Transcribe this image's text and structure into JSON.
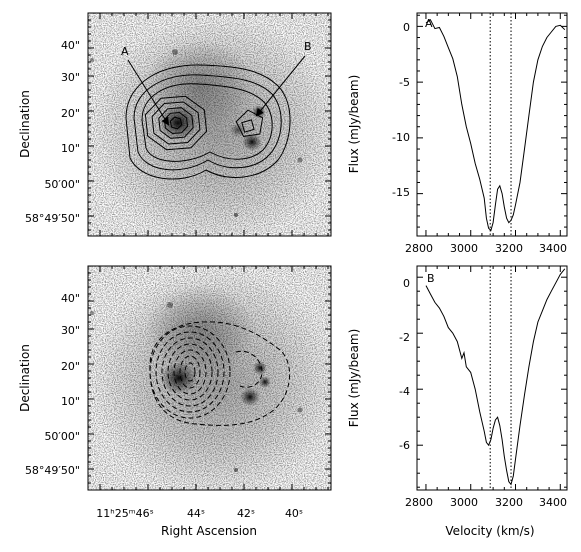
{
  "chart_data": [
    {
      "type": "image-contour",
      "panel": "top-left",
      "xlabel": "",
      "ylabel": "Declination",
      "y_ticks": [
        "40\"",
        "30\"",
        "20\"",
        "10\"",
        "50′00\"",
        "58°49′50\""
      ],
      "arrow_labels": [
        "A",
        "B"
      ],
      "contour_style": "solid",
      "contour_levels_count": 8
    },
    {
      "type": "line",
      "panel": "top-right",
      "label": "A",
      "xlabel": "",
      "ylabel": "Flux (mJy/beam)",
      "xlim": [
        2760,
        3430
      ],
      "ylim": [
        -18.8,
        1.2
      ],
      "x_ticks": [
        "2800",
        "3000",
        "3200",
        "3400"
      ],
      "y_ticks": [
        "0",
        "-5",
        "-10",
        "-15"
      ],
      "vlines": [
        3087,
        3180
      ],
      "x": [
        2800,
        2820,
        2840,
        2860,
        2880,
        2900,
        2920,
        2940,
        2960,
        2980,
        3000,
        3020,
        3040,
        3060,
        3070,
        3080,
        3090,
        3100,
        3110,
        3120,
        3130,
        3140,
        3150,
        3160,
        3170,
        3180,
        3190,
        3200,
        3220,
        3240,
        3260,
        3280,
        3300,
        3320,
        3340,
        3360,
        3380,
        3400,
        3420
      ],
      "y": [
        0.3,
        0.6,
        -0.2,
        -0.1,
        -0.9,
        -1.9,
        -2.9,
        -4.5,
        -7.0,
        -9.0,
        -10.5,
        -12.3,
        -13.7,
        -15.4,
        -17.2,
        -18.1,
        -18.3,
        -17.6,
        -16.0,
        -14.6,
        -14.3,
        -15.0,
        -16.2,
        -17.2,
        -17.6,
        -17.4,
        -16.9,
        -16.0,
        -14.0,
        -11.0,
        -8.0,
        -5.0,
        -3.0,
        -1.8,
        -1.0,
        -0.5,
        0.0,
        0.1,
        -0.3
      ]
    },
    {
      "type": "image-contour",
      "panel": "bottom-left",
      "xlabel": "Right Ascension",
      "ylabel": "Declination",
      "x_ticks": [
        "11ʰ25ᵐ46ˢ",
        "44ˢ",
        "42ˢ",
        "40ˢ"
      ],
      "y_ticks": [
        "40\"",
        "30\"",
        "20\"",
        "10\"",
        "50′00\"",
        "58°49′50\""
      ],
      "contour_style": "dashed",
      "contour_levels_count": 9
    },
    {
      "type": "line",
      "panel": "bottom-right",
      "label": "B",
      "xlabel": "Velocity (km/s)",
      "ylabel": "Flux (mJy/beam)",
      "xlim": [
        2760,
        3430
      ],
      "ylim": [
        -7.6,
        0.4
      ],
      "x_ticks": [
        "2800",
        "3000",
        "3200",
        "3400"
      ],
      "y_ticks": [
        "0",
        "-2",
        "-4",
        "-6"
      ],
      "vlines": [
        3087,
        3180
      ],
      "x": [
        2800,
        2820,
        2840,
        2860,
        2880,
        2900,
        2920,
        2940,
        2960,
        2970,
        2980,
        3000,
        3020,
        3040,
        3060,
        3070,
        3080,
        3090,
        3100,
        3110,
        3120,
        3130,
        3140,
        3150,
        3160,
        3170,
        3180,
        3190,
        3200,
        3220,
        3240,
        3260,
        3280,
        3300,
        3320,
        3340,
        3360,
        3380,
        3400,
        3420
      ],
      "y": [
        -0.3,
        -0.6,
        -0.9,
        -1.1,
        -1.4,
        -1.8,
        -2.0,
        -2.3,
        -2.9,
        -2.7,
        -3.2,
        -3.4,
        -4.0,
        -4.8,
        -5.5,
        -5.9,
        -6.0,
        -5.8,
        -5.4,
        -5.1,
        -5.0,
        -5.3,
        -5.8,
        -6.4,
        -6.9,
        -7.3,
        -7.4,
        -7.1,
        -6.5,
        -5.3,
        -4.2,
        -3.2,
        -2.3,
        -1.6,
        -1.2,
        -0.8,
        -0.5,
        -0.2,
        0.1,
        0.3
      ]
    }
  ]
}
